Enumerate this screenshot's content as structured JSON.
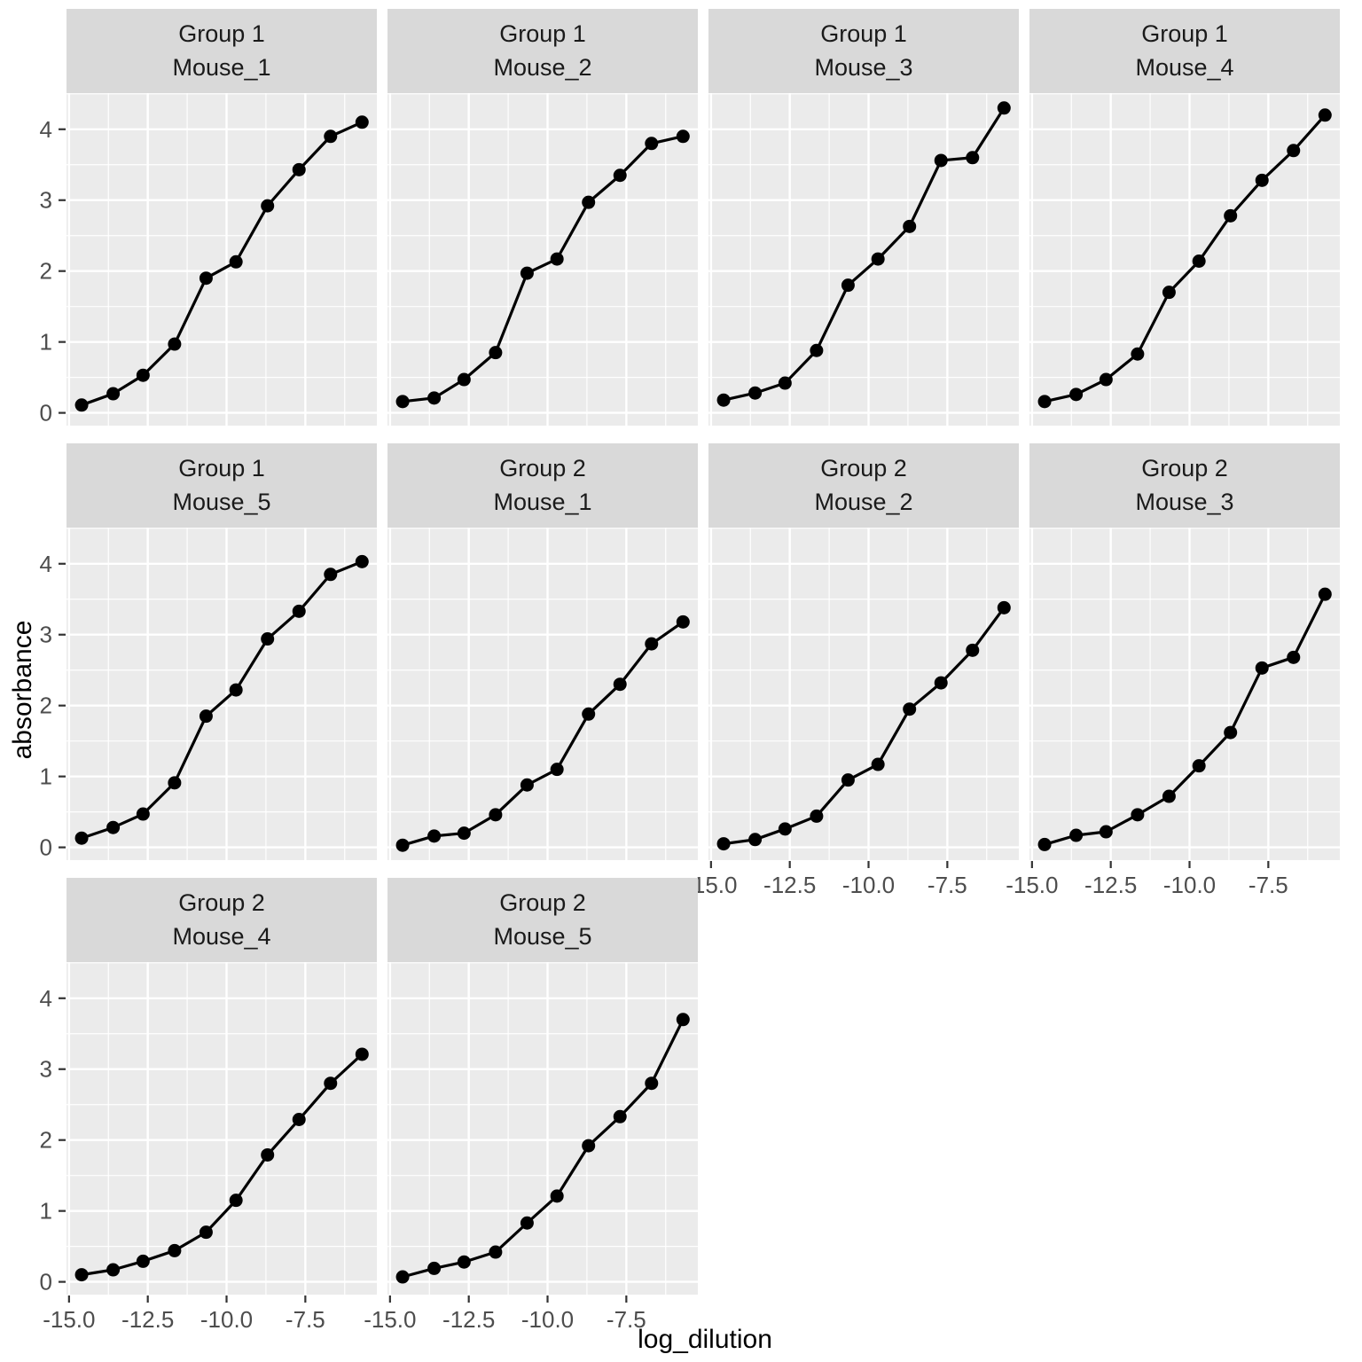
{
  "chart_data": {
    "type": "line",
    "title": "",
    "xlabel": "log_dilution",
    "ylabel": "absorbance",
    "facet_vars": [
      "Group",
      "Mouse"
    ],
    "legend_position": "none",
    "grid": "major-and-minor-white-on-gray",
    "x": [
      -14.6,
      -13.6,
      -12.65,
      -11.65,
      -10.65,
      -9.7,
      -8.7,
      -7.7,
      -6.7,
      -5.7
    ],
    "xlim": [
      -15.08,
      -5.23
    ],
    "ylim": [
      -0.18,
      4.51
    ],
    "x_tick_values": [
      -15.0,
      -12.5,
      -10.0,
      -7.5
    ],
    "x_tick_labels": [
      "-15.0",
      "-12.5",
      "-10.0",
      "-7.5"
    ],
    "y_tick_values": [
      0,
      1,
      2,
      3,
      4
    ],
    "y_tick_labels": [
      "0",
      "1",
      "2",
      "3",
      "4"
    ],
    "x_minor": [
      -13.75,
      -11.25,
      -8.75,
      -6.25
    ],
    "y_minor": [
      0.5,
      1.5,
      2.5,
      3.5,
      4.5
    ],
    "panels": [
      {
        "group": "Group 1",
        "mouse": "Mouse_1",
        "y": [
          0.11,
          0.27,
          0.53,
          0.97,
          1.9,
          2.13,
          2.92,
          3.43,
          3.9,
          4.1
        ]
      },
      {
        "group": "Group 1",
        "mouse": "Mouse_2",
        "y": [
          0.16,
          0.21,
          0.47,
          0.85,
          1.97,
          2.17,
          2.97,
          3.35,
          3.8,
          3.9
        ]
      },
      {
        "group": "Group 1",
        "mouse": "Mouse_3",
        "y": [
          0.18,
          0.28,
          0.42,
          0.88,
          1.8,
          2.17,
          2.63,
          3.56,
          3.6,
          4.3
        ]
      },
      {
        "group": "Group 1",
        "mouse": "Mouse_4",
        "y": [
          0.16,
          0.26,
          0.47,
          0.83,
          1.7,
          2.14,
          2.78,
          3.28,
          3.7,
          4.2
        ]
      },
      {
        "group": "Group 1",
        "mouse": "Mouse_5",
        "y": [
          0.13,
          0.28,
          0.47,
          0.91,
          1.85,
          2.22,
          2.94,
          3.33,
          3.85,
          4.03
        ]
      },
      {
        "group": "Group 2",
        "mouse": "Mouse_1",
        "y": [
          0.03,
          0.16,
          0.2,
          0.46,
          0.88,
          1.1,
          1.88,
          2.3,
          2.87,
          3.18
        ]
      },
      {
        "group": "Group 2",
        "mouse": "Mouse_2",
        "y": [
          0.05,
          0.11,
          0.26,
          0.44,
          0.95,
          1.17,
          1.95,
          2.32,
          2.78,
          3.38
        ]
      },
      {
        "group": "Group 2",
        "mouse": "Mouse_3",
        "y": [
          0.04,
          0.17,
          0.22,
          0.46,
          0.72,
          1.15,
          1.62,
          2.53,
          2.68,
          3.57
        ]
      },
      {
        "group": "Group 2",
        "mouse": "Mouse_4",
        "y": [
          0.1,
          0.17,
          0.29,
          0.44,
          0.7,
          1.15,
          1.79,
          2.29,
          2.8,
          3.21
        ]
      },
      {
        "group": "Group 2",
        "mouse": "Mouse_5",
        "y": [
          0.07,
          0.19,
          0.28,
          0.42,
          0.83,
          1.21,
          1.92,
          2.33,
          2.8,
          3.7
        ]
      }
    ],
    "colors": {
      "panel_bg": "#ebebeb",
      "strip_bg": "#d9d9d9",
      "grid": "#ffffff",
      "line": "#000000",
      "point": "#000000",
      "tick_text": "#4d4d4d",
      "tick_mark": "#333333",
      "strip_text": "#1a1a1a",
      "axis_title": "#000000"
    }
  }
}
